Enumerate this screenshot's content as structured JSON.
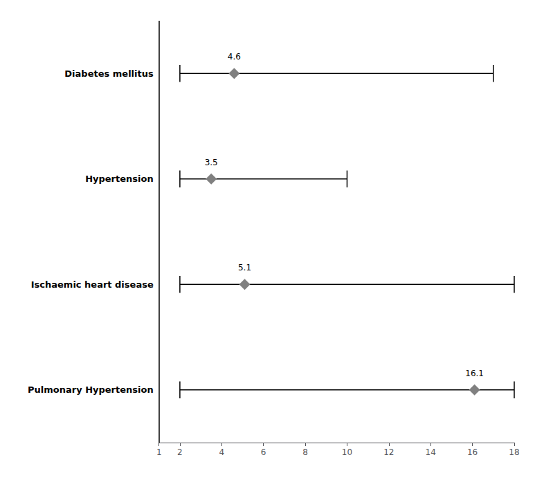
{
  "chart_data": {
    "type": "forest",
    "categories": [
      "Diabetes mellitus",
      "Hypertension",
      "Ischaemic heart disease",
      "Pulmonary Hypertension"
    ],
    "values": [
      4.6,
      3.5,
      5.1,
      16.1
    ],
    "ci_lower": [
      2.0,
      2.0,
      2.0,
      2.0
    ],
    "ci_upper": [
      17.0,
      10.0,
      18.0,
      18.0
    ],
    "data_labels": true,
    "xlim": [
      1,
      18
    ],
    "xticks": [
      1,
      2,
      4,
      6,
      8,
      10,
      12,
      14,
      16,
      18
    ],
    "reference_line": 1,
    "color": "#808080",
    "marker": "diamond",
    "grid": false
  }
}
